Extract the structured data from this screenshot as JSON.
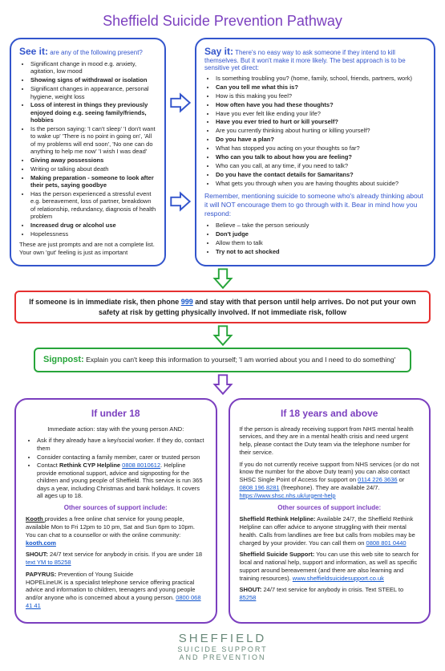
{
  "title": "Sheffield Suicide Prevention Pathway",
  "colors": {
    "purple": "#7b3fbf",
    "blue": "#3355cc",
    "green": "#27a53a",
    "red": "#e53030",
    "link": "#1155cc"
  },
  "see": {
    "head": "See it:",
    "sub": " are any of the following present?",
    "items": [
      {
        "t": "Significant change in mood e.g. anxiety, agitation, low mood"
      },
      {
        "t": "Showing signs of withdrawal or isolation",
        "b": true
      },
      {
        "t": "Significant changes in appearance, personal hygiene, weight loss"
      },
      {
        "t": "Loss of interest in things they previously enjoyed doing e.g. seeing family/friends, hobbies",
        "b": true
      },
      {
        "t": "Is the person saying: 'I can't sleep' 'I don't want to wake up' 'There is no point in going on', 'All of my problems will end soon', 'No one can do anything to help me now' 'I wish I was dead'"
      },
      {
        "t": "Giving away possessions",
        "b": true
      },
      {
        "t": "Writing or talking about death"
      },
      {
        "t": "Making preparation - someone to look after their pets, saying goodbye",
        "b": true
      },
      {
        "t": "Has the person experienced a stressful event e.g. bereavement, loss of partner, breakdown of relationship, redundancy, diagnosis of health problem"
      },
      {
        "t": "Increased drug or alcohol use",
        "b": true
      },
      {
        "t": "Hopelessness"
      }
    ],
    "note": "These are just prompts and are not a complete list. Your own 'gut' feeling is just as important"
  },
  "say": {
    "head": "Say it:",
    "sub": " There's no easy way to ask someone if they intend to kill themselves. But it won't make it more likely. The best approach is to be sensitive yet direct:",
    "items": [
      {
        "t": "Is something troubling you? (home, family, school, friends, partners, work)"
      },
      {
        "t": "Can you tell me what this is?",
        "b": true
      },
      {
        "t": "How is this making you feel?"
      },
      {
        "t": "How often have you had these thoughts?",
        "b": true
      },
      {
        "t": "Have you ever felt like ending your life?"
      },
      {
        "t": "Have you ever tried to hurt or kill yourself?",
        "b": true
      },
      {
        "t": "Are you currently thinking about hurting or killing yourself?"
      },
      {
        "t": "Do you have a plan?",
        "b": true
      },
      {
        "t": "What has stopped you acting on your thoughts so far?"
      },
      {
        "t": "Who can you talk to about how you are feeling?",
        "b": true
      },
      {
        "t": "Who can you call, at any time, if you need to talk?"
      },
      {
        "t": "Do you have the contact details for Samaritans?",
        "b": true
      },
      {
        "t": "What gets you through when you are having thoughts about suicide?"
      }
    ],
    "remember": "Remember, mentioning suicide to someone who's already thinking about it will NOT encourage them to go through with it. Bear in mind how you respond:",
    "respond": [
      {
        "t": "Believe – take the person seriously"
      },
      {
        "t": "Don't judge",
        "b": true
      },
      {
        "t": "Allow them to talk"
      },
      {
        "t": "Try not to act shocked",
        "b": true
      }
    ]
  },
  "redbox": {
    "pre": "If someone is in immediate risk, then phone ",
    "link": "999",
    "post": " and stay with that person until help arrives. Do not put your own safety at risk by getting physically involved. If not immediate risk, follow"
  },
  "signpost": {
    "head": "Signpost:",
    "text": " Explain you can't keep this information to yourself; 'I am worried about you and I need to do something'"
  },
  "under18": {
    "head": "If under 18",
    "intro": "Immediate action: stay with the young person AND:",
    "items": [
      "Ask if they already have a key/social worker. If they do, contact them",
      "Consider contacting a family member, carer or trusted person"
    ],
    "contact_pre": "Contact ",
    "contact_b": "Rethink CYP Helpline ",
    "contact_num": "0808 8010612",
    "contact_post": ". Helpline provide emotional support, advice and signposting for the children and young people of Sheffield. This service is run 365 days a year, including Christmas and bank holidays. It covers all ages up to 18.",
    "other_head": "Other sources of support include:",
    "kooth_b": "Kooth ",
    "kooth_t": " provides a free online chat service for young people, available Mon to Fri 12pm to 10 pm, Sat and Sun 6pm to 10pm. You can chat to a counsellor or with the online community: ",
    "kooth_link": "kooth.com",
    "shout_b": "SHOUT:",
    "shout_t": " 24/7 text service for anybody in crisis. If you are under 18 ",
    "shout_link": "text YM to 85258",
    "pap_b": "PAPYRUS:",
    "pap_sub": " Prevention of Young Suicide",
    "pap_t": "HOPELineUK is a specialist telephone service offering practical advice and information to children, teenagers and young people and/or anyone who is concerned about a young person. ",
    "pap_link": "0800 068 41 41"
  },
  "over18": {
    "head": "If 18 years and above",
    "p1": "If the person is already receiving support from NHS mental health services, and they are in a mental health crisis and need urgent help, please contact the Duty team via the telephone number for their service.",
    "p2_a": "If you do not currently receive support from NHS services (or do not know the number for the above Duty team) you can also contact SHSC Single Point of Access for support on ",
    "p2_l1": "0114 226 3636",
    "p2_b": " or ",
    "p2_l2": "0808 196 8281",
    "p2_c": " (freephone). They are available 24/7. ",
    "p2_l3": "https://www.shsc.nhs.uk/urgent-help",
    "other_head": "Other sources of support include:",
    "rethink_b": "Sheffield Rethink Helpline:",
    "rethink_t": " Available 24/7, the Sheffield Rethink Helpline can offer advice to anyone struggling with their mental health. Calls from landlines are free but calls from mobiles may be charged by your provider. You can call them on ",
    "rethink_link": "0808 801 0440",
    "sss_b": "Sheffield Suicide Support:",
    "sss_t": " You can use this web site to search for local and national help, support and information, as well as specific support around bereavement (and there are also learning and training resources). ",
    "sss_link": "www.sheffieldsuicidesupport.co.uk",
    "shout_b": "SHOUT:",
    "shout_t": " 24/7 text service for anybody in crisis. Text STEEL to ",
    "shout_link": "85258"
  },
  "footer": {
    "l1": "SHEFFIELD",
    "l2": "SUICIDE SUPPORT",
    "l3": "AND PREVENTION"
  }
}
